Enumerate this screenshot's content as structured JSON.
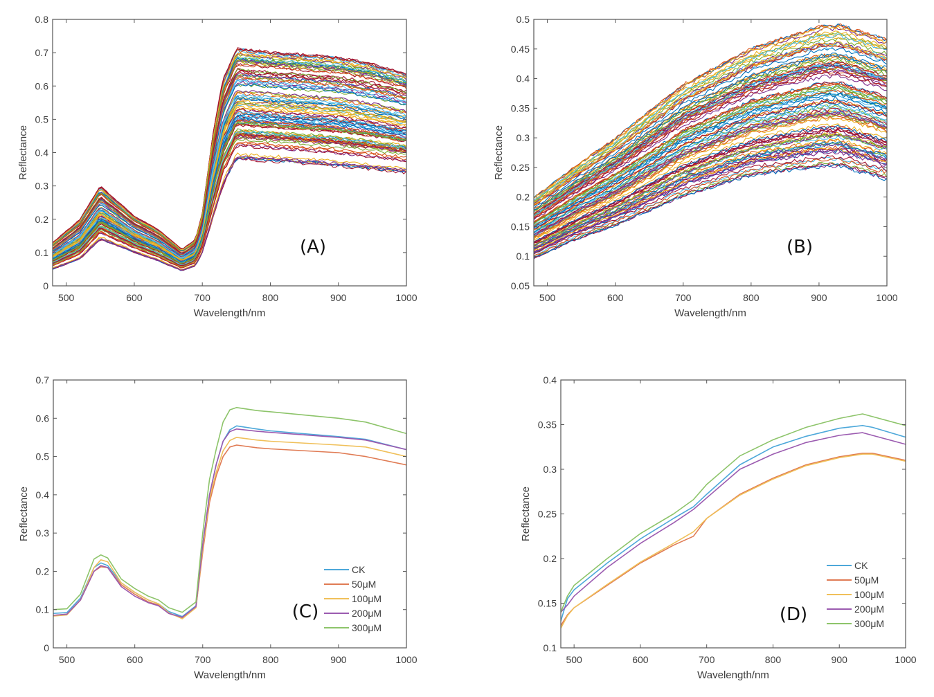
{
  "chart_data": [
    {
      "id": "A",
      "type": "line",
      "panel_label": "(A)",
      "xlabel": "Wavelength/nm",
      "ylabel": "Reflectance",
      "xlim": [
        480,
        1000
      ],
      "ylim": [
        0,
        0.8
      ],
      "xticks": [
        500,
        600,
        700,
        800,
        900,
        1000
      ],
      "yticks": [
        0,
        0.1,
        0.2,
        0.3,
        0.4,
        0.5,
        0.6,
        0.7,
        0.8
      ],
      "series_count": 110,
      "envelope": {
        "x": [
          480,
          520,
          550,
          600,
          635,
          670,
          690,
          700,
          715,
          730,
          750,
          800,
          900,
          950,
          1000
        ],
        "upper": [
          0.13,
          0.2,
          0.3,
          0.21,
          0.17,
          0.11,
          0.14,
          0.22,
          0.45,
          0.62,
          0.715,
          0.705,
          0.69,
          0.67,
          0.64
        ],
        "lower": [
          0.05,
          0.08,
          0.14,
          0.1,
          0.075,
          0.045,
          0.06,
          0.1,
          0.2,
          0.3,
          0.38,
          0.375,
          0.36,
          0.35,
          0.34
        ]
      },
      "colors": [
        "#0072BD",
        "#D95319",
        "#EDB120",
        "#7E2F8E",
        "#77AC30",
        "#4DBEEE",
        "#A2142F"
      ]
    },
    {
      "id": "B",
      "type": "line",
      "panel_label": "(B)",
      "xlabel": "Wavelength/nm",
      "ylabel": "Reflectance",
      "xlim": [
        480,
        1000
      ],
      "ylim": [
        0.05,
        0.5
      ],
      "xticks": [
        500,
        600,
        700,
        800,
        900,
        1000
      ],
      "yticks": [
        0.05,
        0.1,
        0.15,
        0.2,
        0.25,
        0.3,
        0.35,
        0.4,
        0.45,
        0.5
      ],
      "series_count": 110,
      "envelope": {
        "x": [
          480,
          550,
          600,
          700,
          800,
          900,
          930,
          1000
        ],
        "upper": [
          0.2,
          0.26,
          0.3,
          0.39,
          0.45,
          0.488,
          0.49,
          0.465
        ],
        "lower": [
          0.095,
          0.13,
          0.15,
          0.2,
          0.235,
          0.25,
          0.252,
          0.23
        ]
      },
      "colors": [
        "#0072BD",
        "#D95319",
        "#EDB120",
        "#7E2F8E",
        "#77AC30",
        "#4DBEEE",
        "#A2142F"
      ]
    },
    {
      "id": "C",
      "type": "line",
      "panel_label": "(C)",
      "xlabel": "Wavelength/nm",
      "ylabel": "Reflectance",
      "xlim": [
        480,
        1000
      ],
      "ylim": [
        0,
        0.7
      ],
      "xticks": [
        500,
        600,
        700,
        800,
        900,
        1000
      ],
      "yticks": [
        0,
        0.1,
        0.2,
        0.3,
        0.4,
        0.5,
        0.6,
        0.7
      ],
      "legend_position": "bottom-right",
      "x": [
        480,
        500,
        520,
        540,
        550,
        560,
        580,
        600,
        620,
        635,
        650,
        670,
        690,
        700,
        710,
        720,
        730,
        740,
        750,
        780,
        800,
        900,
        940,
        1000
      ],
      "series": [
        {
          "name": "CK",
          "color": "#4DA8DA",
          "values": [
            0.09,
            0.092,
            0.13,
            0.21,
            0.222,
            0.215,
            0.17,
            0.145,
            0.125,
            0.115,
            0.095,
            0.082,
            0.11,
            0.27,
            0.4,
            0.48,
            0.54,
            0.57,
            0.58,
            0.572,
            0.567,
            0.552,
            0.545,
            0.518
          ]
        },
        {
          "name": "50μM",
          "color": "#E07B54",
          "values": [
            0.085,
            0.088,
            0.125,
            0.2,
            0.212,
            0.21,
            0.165,
            0.14,
            0.12,
            0.112,
            0.09,
            0.078,
            0.105,
            0.25,
            0.38,
            0.45,
            0.5,
            0.525,
            0.53,
            0.523,
            0.52,
            0.51,
            0.5,
            0.478
          ]
        },
        {
          "name": "100μM",
          "color": "#F0C05A",
          "values": [
            0.083,
            0.086,
            0.125,
            0.21,
            0.23,
            0.225,
            0.17,
            0.145,
            0.125,
            0.115,
            0.092,
            0.076,
            0.105,
            0.26,
            0.39,
            0.46,
            0.515,
            0.542,
            0.55,
            0.543,
            0.54,
            0.53,
            0.525,
            0.5
          ]
        },
        {
          "name": "200μM",
          "color": "#9B5BB0",
          "values": [
            0.085,
            0.088,
            0.125,
            0.2,
            0.215,
            0.21,
            0.16,
            0.135,
            0.118,
            0.11,
            0.09,
            0.08,
            0.108,
            0.27,
            0.4,
            0.48,
            0.54,
            0.565,
            0.572,
            0.566,
            0.563,
            0.55,
            0.543,
            0.518
          ]
        },
        {
          "name": "300μM",
          "color": "#8DC46A",
          "values": [
            0.1,
            0.102,
            0.14,
            0.232,
            0.243,
            0.235,
            0.18,
            0.155,
            0.135,
            0.125,
            0.105,
            0.093,
            0.12,
            0.3,
            0.44,
            0.52,
            0.59,
            0.622,
            0.628,
            0.62,
            0.617,
            0.6,
            0.59,
            0.56
          ]
        }
      ]
    },
    {
      "id": "D",
      "type": "line",
      "panel_label": "(D)",
      "xlabel": "Wavelength/nm",
      "ylabel": "Reflectance",
      "xlim": [
        480,
        1000
      ],
      "ylim": [
        0.1,
        0.4
      ],
      "xticks": [
        500,
        600,
        700,
        800,
        900,
        1000
      ],
      "yticks": [
        0.1,
        0.15,
        0.2,
        0.25,
        0.3,
        0.35,
        0.4
      ],
      "legend_position": "bottom-right",
      "x": [
        480,
        490,
        500,
        550,
        600,
        650,
        680,
        700,
        750,
        800,
        850,
        900,
        935,
        950,
        1000
      ],
      "series": [
        {
          "name": "CK",
          "color": "#4DA8DA",
          "values": [
            0.13,
            0.155,
            0.165,
            0.195,
            0.222,
            0.245,
            0.258,
            0.272,
            0.305,
            0.325,
            0.337,
            0.346,
            0.349,
            0.347,
            0.336
          ]
        },
        {
          "name": "50μM",
          "color": "#E07B54",
          "values": [
            0.125,
            0.137,
            0.145,
            0.17,
            0.195,
            0.215,
            0.225,
            0.245,
            0.272,
            0.29,
            0.305,
            0.314,
            0.318,
            0.318,
            0.31
          ]
        },
        {
          "name": "100μM",
          "color": "#F0C05A",
          "values": [
            0.122,
            0.136,
            0.145,
            0.171,
            0.196,
            0.217,
            0.23,
            0.245,
            0.271,
            0.289,
            0.304,
            0.313,
            0.317,
            0.317,
            0.309
          ]
        },
        {
          "name": "200μM",
          "color": "#9B5BB0",
          "values": [
            0.14,
            0.148,
            0.158,
            0.19,
            0.217,
            0.24,
            0.255,
            0.268,
            0.3,
            0.317,
            0.33,
            0.338,
            0.341,
            0.338,
            0.328
          ]
        },
        {
          "name": "300μM",
          "color": "#8DC46A",
          "values": [
            0.14,
            0.158,
            0.17,
            0.2,
            0.228,
            0.25,
            0.266,
            0.283,
            0.315,
            0.333,
            0.347,
            0.357,
            0.362,
            0.359,
            0.349
          ]
        }
      ]
    }
  ]
}
